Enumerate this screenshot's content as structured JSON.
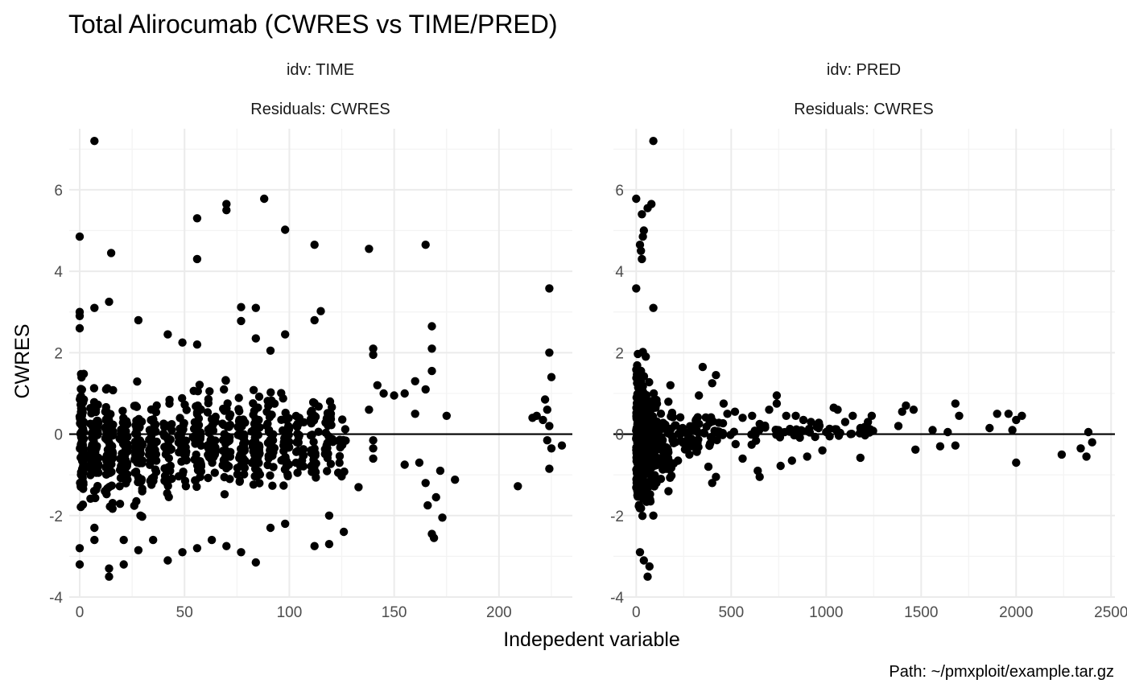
{
  "chart_data": {
    "type": "scatter",
    "title": "Total Alirocumab (CWRES vs TIME/PRED)",
    "xlabel": "Indepedent variable",
    "ylabel": "CWRES",
    "caption": "Path: ~/pmxploit/example.tar.gz",
    "reference_line_y": 0,
    "grid": true,
    "ylim": [
      -4,
      7.5
    ],
    "yticks": [
      -4,
      -2,
      0,
      2,
      4,
      6
    ],
    "panels": [
      {
        "strip": [
          "idv: TIME",
          "Residuals: CWRES"
        ],
        "xlim": [
          -5,
          235
        ],
        "xticks": [
          0,
          50,
          100,
          150,
          200
        ],
        "points": [
          [
            7,
            7.2
          ],
          [
            0,
            4.85
          ],
          [
            15,
            4.45
          ],
          [
            56,
            5.3
          ],
          [
            56,
            4.3
          ],
          [
            70,
            5.65
          ],
          [
            70,
            5.5
          ],
          [
            88,
            5.78
          ],
          [
            98,
            5.02
          ],
          [
            112,
            4.65
          ],
          [
            138,
            4.55
          ],
          [
            165,
            4.65
          ],
          [
            224,
            3.58
          ],
          [
            224,
            2.0
          ],
          [
            225,
            1.4
          ],
          [
            222,
            0.85
          ],
          [
            223,
            0.6
          ],
          [
            221,
            0.35
          ],
          [
            224,
            0.2
          ],
          [
            223,
            -0.15
          ],
          [
            225,
            -0.35
          ],
          [
            230,
            -0.28
          ],
          [
            224,
            -0.85
          ],
          [
            218,
            0.45
          ],
          [
            216,
            0.4
          ],
          [
            209,
            -1.28
          ],
          [
            179,
            -1.12
          ],
          [
            0,
            3.0
          ],
          [
            0,
            2.9
          ],
          [
            7,
            3.1
          ],
          [
            14,
            3.25
          ],
          [
            0,
            2.6
          ],
          [
            28,
            2.8
          ],
          [
            42,
            2.45
          ],
          [
            49,
            2.25
          ],
          [
            56,
            2.2
          ],
          [
            77,
            3.12
          ],
          [
            77,
            2.78
          ],
          [
            84,
            3.1
          ],
          [
            84,
            2.35
          ],
          [
            91,
            2.05
          ],
          [
            98,
            2.45
          ],
          [
            112,
            2.8
          ],
          [
            115,
            3.02
          ],
          [
            140,
            2.1
          ],
          [
            140,
            1.95
          ],
          [
            160,
            1.3
          ],
          [
            168,
            2.65
          ],
          [
            168,
            2.1
          ],
          [
            168,
            1.55
          ],
          [
            0,
            -2.8
          ],
          [
            7,
            -2.6
          ],
          [
            14,
            -3.5
          ],
          [
            14,
            -3.3
          ],
          [
            21,
            -3.2
          ],
          [
            28,
            -2.85
          ],
          [
            35,
            -2.6
          ],
          [
            42,
            -3.1
          ],
          [
            49,
            -2.9
          ],
          [
            56,
            -2.8
          ],
          [
            63,
            -2.6
          ],
          [
            70,
            -2.75
          ],
          [
            77,
            -2.9
          ],
          [
            84,
            -3.15
          ],
          [
            91,
            -2.3
          ],
          [
            98,
            -2.2
          ],
          [
            112,
            -2.75
          ],
          [
            119,
            -2.7
          ],
          [
            119,
            -2.0
          ],
          [
            126,
            -2.4
          ],
          [
            168,
            -2.45
          ],
          [
            169,
            -2.55
          ],
          [
            173,
            -2.05
          ],
          [
            170,
            -1.55
          ],
          [
            166,
            -1.75
          ],
          [
            165,
            -1.2
          ],
          [
            133,
            -1.3
          ],
          [
            155,
            -0.75
          ],
          [
            150,
            0.95
          ],
          [
            145,
            1.0
          ],
          [
            142,
            1.2
          ],
          [
            138,
            0.6
          ],
          [
            140,
            -0.15
          ],
          [
            140,
            -0.35
          ],
          [
            140,
            -0.6
          ],
          [
            162,
            -0.7
          ],
          [
            172,
            -0.9
          ],
          [
            175,
            0.45
          ],
          [
            160,
            0.5
          ],
          [
            155,
            1.0
          ],
          [
            165,
            1.1
          ],
          [
            0,
            -3.2
          ],
          [
            7,
            -2.3
          ],
          [
            21,
            -2.6
          ]
        ],
        "dense": [
          {
            "x": [
              0,
              2
            ],
            "y": [
              -2.6,
              2.3
            ],
            "n": 90
          },
          {
            "x": [
              5,
              9
            ],
            "y": [
              -2.4,
              1.8
            ],
            "n": 70
          },
          {
            "x": [
              12,
              16
            ],
            "y": [
              -2.6,
              2.0
            ],
            "n": 70
          },
          {
            "x": [
              19,
              23
            ],
            "y": [
              -2.4,
              1.6
            ],
            "n": 55
          },
          {
            "x": [
              26,
              30
            ],
            "y": [
              -2.6,
              1.8
            ],
            "n": 55
          },
          {
            "x": [
              33,
              37
            ],
            "y": [
              -2.2,
              1.6
            ],
            "n": 40
          },
          {
            "x": [
              40,
              44
            ],
            "y": [
              -2.3,
              1.7
            ],
            "n": 40
          },
          {
            "x": [
              47,
              51
            ],
            "y": [
              -2.0,
              1.5
            ],
            "n": 35
          },
          {
            "x": [
              54,
              58
            ],
            "y": [
              -2.4,
              1.9
            ],
            "n": 45
          },
          {
            "x": [
              61,
              65
            ],
            "y": [
              -2.2,
              1.6
            ],
            "n": 40
          },
          {
            "x": [
              68,
              72
            ],
            "y": [
              -2.3,
              1.9
            ],
            "n": 45
          },
          {
            "x": [
              75,
              79
            ],
            "y": [
              -2.0,
              1.7
            ],
            "n": 40
          },
          {
            "x": [
              82,
              86
            ],
            "y": [
              -2.2,
              1.8
            ],
            "n": 45
          },
          {
            "x": [
              89,
              93
            ],
            "y": [
              -1.8,
              1.5
            ],
            "n": 30
          },
          {
            "x": [
              96,
              100
            ],
            "y": [
              -2.0,
              1.5
            ],
            "n": 35
          },
          {
            "x": [
              103,
              107
            ],
            "y": [
              -1.6,
              1.3
            ],
            "n": 22
          },
          {
            "x": [
              110,
              114
            ],
            "y": [
              -1.8,
              1.6
            ],
            "n": 30
          },
          {
            "x": [
              117,
              121
            ],
            "y": [
              -1.6,
              1.4
            ],
            "n": 25
          },
          {
            "x": [
              123,
              127
            ],
            "y": [
              -1.4,
              0.9
            ],
            "n": 14
          }
        ]
      },
      {
        "strip": [
          "idv: PRED",
          "Residuals: CWRES"
        ],
        "xlim": [
          -120,
          2520
        ],
        "xticks": [
          0,
          500,
          1000,
          1500,
          2000,
          2500
        ],
        "points": [
          [
            90,
            7.2
          ],
          [
            0,
            5.78
          ],
          [
            30,
            5.4
          ],
          [
            60,
            5.55
          ],
          [
            80,
            5.65
          ],
          [
            40,
            5.0
          ],
          [
            35,
            4.85
          ],
          [
            20,
            4.65
          ],
          [
            25,
            4.5
          ],
          [
            30,
            4.3
          ],
          [
            0,
            3.58
          ],
          [
            90,
            3.1
          ],
          [
            350,
            1.65
          ],
          [
            420,
            1.45
          ],
          [
            400,
            1.25
          ],
          [
            180,
            1.2
          ],
          [
            330,
            0.95
          ],
          [
            460,
            0.75
          ],
          [
            480,
            0.5
          ],
          [
            520,
            0.55
          ],
          [
            560,
            0.4
          ],
          [
            610,
            0.45
          ],
          [
            650,
            0.25
          ],
          [
            700,
            0.6
          ],
          [
            740,
            0.95
          ],
          [
            740,
            0.75
          ],
          [
            790,
            0.45
          ],
          [
            840,
            0.45
          ],
          [
            880,
            0.35
          ],
          [
            920,
            0.3
          ],
          [
            960,
            0.15
          ],
          [
            1000,
            0.05
          ],
          [
            1040,
            0.65
          ],
          [
            1060,
            0.6
          ],
          [
            1100,
            0.3
          ],
          [
            1140,
            0.45
          ],
          [
            1180,
            0.15
          ],
          [
            1220,
            0.3
          ],
          [
            1240,
            0.45
          ],
          [
            1380,
            0.2
          ],
          [
            1420,
            0.7
          ],
          [
            1460,
            0.6
          ],
          [
            1400,
            0.55
          ],
          [
            1560,
            0.1
          ],
          [
            1640,
            0.05
          ],
          [
            1680,
            0.75
          ],
          [
            1700,
            0.45
          ],
          [
            1860,
            0.15
          ],
          [
            1900,
            0.5
          ],
          [
            1960,
            0.5
          ],
          [
            2000,
            0.35
          ],
          [
            2030,
            0.45
          ],
          [
            1980,
            0.1
          ],
          [
            2000,
            -0.7
          ],
          [
            2240,
            -0.5
          ],
          [
            2340,
            -0.35
          ],
          [
            2380,
            0.05
          ],
          [
            2400,
            -0.2
          ],
          [
            2370,
            -0.55
          ],
          [
            1470,
            -0.38
          ],
          [
            1680,
            -0.28
          ],
          [
            1600,
            -0.3
          ],
          [
            1180,
            -0.58
          ],
          [
            980,
            -0.4
          ],
          [
            900,
            -0.55
          ],
          [
            820,
            -0.65
          ],
          [
            760,
            -0.78
          ],
          [
            640,
            -0.9
          ],
          [
            650,
            -1.05
          ],
          [
            560,
            -0.6
          ],
          [
            420,
            -1.05
          ],
          [
            400,
            -1.2
          ],
          [
            380,
            -0.8
          ],
          [
            220,
            -0.65
          ],
          [
            290,
            -0.3
          ],
          [
            170,
            -1.4
          ],
          [
            130,
            -1.1
          ],
          [
            70,
            -3.25
          ],
          [
            60,
            -3.5
          ],
          [
            40,
            -3.1
          ],
          [
            20,
            -2.9
          ],
          [
            90,
            -2.0
          ]
        ],
        "dense": [
          {
            "x": [
              0,
              25
            ],
            "y": [
              -3.0,
              3.0
            ],
            "n": 220
          },
          {
            "x": [
              25,
              60
            ],
            "y": [
              -2.6,
              2.4
            ],
            "n": 160
          },
          {
            "x": [
              60,
              110
            ],
            "y": [
              -2.2,
              1.8
            ],
            "n": 110
          },
          {
            "x": [
              110,
              200
            ],
            "y": [
              -1.5,
              1.2
            ],
            "n": 60
          },
          {
            "x": [
              200,
              350
            ],
            "y": [
              -0.9,
              0.9
            ],
            "n": 35
          },
          {
            "x": [
              350,
              650
            ],
            "y": [
              -0.6,
              0.7
            ],
            "n": 30
          },
          {
            "x": [
              650,
              1100
            ],
            "y": [
              -0.35,
              0.45
            ],
            "n": 30
          },
          {
            "x": [
              1100,
              1300
            ],
            "y": [
              -0.25,
              0.35
            ],
            "n": 10
          }
        ]
      }
    ]
  }
}
